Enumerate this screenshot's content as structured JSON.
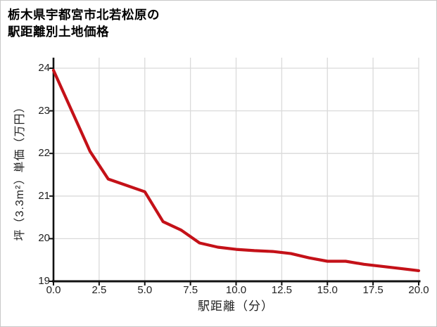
{
  "title": {
    "line1": "栃木県宇都宮市北若松原の",
    "line2": "駅距離別土地価格"
  },
  "chart": {
    "y_axis_label": "坪（3.3m²）単価（万円）",
    "x_axis_label": "駅距離（分）",
    "y_ticks": [
      "24",
      "23",
      "22",
      "21",
      "20",
      "19"
    ],
    "x_ticks": [
      "0.0",
      "2.5",
      "5.0",
      "7.5",
      "10.0",
      "12.5",
      "15.0",
      "17.5",
      "20.0"
    ]
  },
  "colors": {
    "line": "#c41118",
    "grid": "#dadada",
    "axis": "#111111",
    "text": "#222222",
    "frame_border": "#c8c8c8"
  },
  "chart_data": {
    "type": "line",
    "title": "栃木県宇都宮市北若松原の駅距離別土地価格",
    "xlabel": "駅距離（分）",
    "ylabel": "坪（3.3m²）単価（万円）",
    "x": [
      0,
      1,
      2,
      3,
      4,
      5,
      6,
      7,
      8,
      9,
      10,
      11,
      12,
      13,
      14,
      15,
      16,
      17,
      18,
      19,
      20
    ],
    "values": [
      23.95,
      23.0,
      22.05,
      21.4,
      21.25,
      21.1,
      20.4,
      20.2,
      19.9,
      19.8,
      19.75,
      19.72,
      19.7,
      19.65,
      19.55,
      19.47,
      19.47,
      19.4,
      19.35,
      19.3,
      19.25
    ],
    "xlim": [
      0,
      20
    ],
    "ylim": [
      19,
      24
    ],
    "x_tick_step": 2.5,
    "y_tick_step": 1,
    "grid": true,
    "legend": "none",
    "line_color": "#c41118"
  }
}
